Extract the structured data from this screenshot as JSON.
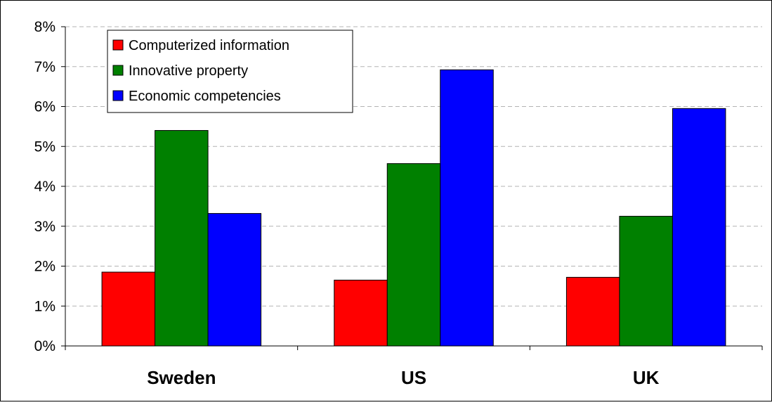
{
  "chart_data": {
    "type": "bar",
    "title": "",
    "xlabel": "",
    "ylabel": "",
    "categories": [
      "Sweden",
      "US",
      "UK"
    ],
    "series": [
      {
        "name": "Computerized information",
        "color": "#ff0000",
        "values": [
          1.85,
          1.65,
          1.72
        ]
      },
      {
        "name": "Innovative property",
        "color": "#008000",
        "values": [
          5.4,
          4.57,
          3.25
        ]
      },
      {
        "name": "Economic competencies",
        "color": "#0000ff",
        "values": [
          3.32,
          6.92,
          5.95
        ]
      }
    ],
    "ylim": [
      0,
      8
    ],
    "yticks": [
      "0%",
      "1%",
      "2%",
      "3%",
      "4%",
      "5%",
      "6%",
      "7%",
      "8%"
    ],
    "grid": "horizontal dashed",
    "legend_position": "top-left"
  }
}
